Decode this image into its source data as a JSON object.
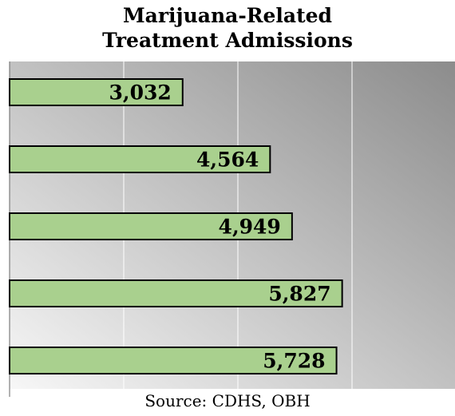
{
  "title_lines": [
    "Marijuana-Related",
    "Treatment Admissions"
  ],
  "source": "Source: CDHS, OBH",
  "colors": {
    "bar_fill": "#a9d08e",
    "bar_stroke": "#000000",
    "gradient_light": "#f7f7f7",
    "gradient_dark": "#8c8c8c",
    "gridline": "#ffffff"
  },
  "chart_data": {
    "type": "bar",
    "orientation": "horizontal",
    "title": "Marijuana-Related Treatment Admissions",
    "categories": [
      "",
      "",
      "",
      "",
      ""
    ],
    "values": [
      3032,
      4564,
      4949,
      5827,
      5728
    ],
    "value_labels": [
      "3,032",
      "4,564",
      "4,949",
      "5,827",
      "5,728"
    ],
    "xlim": [
      0,
      8000
    ],
    "grid": true,
    "legend": "none"
  }
}
